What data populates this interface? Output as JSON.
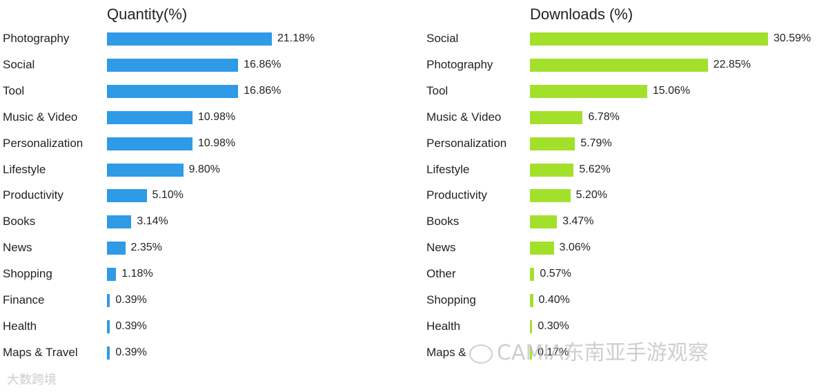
{
  "chart_data": [
    {
      "type": "bar",
      "orientation": "horizontal",
      "title": "Quantity(%)",
      "color": "#2f9ae6",
      "xlim": [
        0,
        30.59
      ],
      "categories": [
        "Photography",
        "Social",
        "Tool",
        "Music & Video",
        "Personalization",
        "Lifestyle",
        "Productivity",
        "Books",
        "News",
        "Shopping",
        "Finance",
        "Health",
        "Maps & Travel"
      ],
      "values": [
        21.18,
        16.86,
        16.86,
        10.98,
        10.98,
        9.8,
        5.1,
        3.14,
        2.35,
        1.18,
        0.39,
        0.39,
        0.39
      ],
      "labels": [
        "21.18%",
        "16.86%",
        "16.86%",
        "10.98%",
        "10.98%",
        "9.80%",
        "5.10%",
        "3.14%",
        "2.35%",
        "1.18%",
        "0.39%",
        "0.39%",
        "0.39%"
      ]
    },
    {
      "type": "bar",
      "orientation": "horizontal",
      "title": "Downloads (%)",
      "color": "#a3e02c",
      "xlim": [
        0,
        30.59
      ],
      "categories": [
        "Social",
        "Photography",
        "Tool",
        "Music & Video",
        "Personalization",
        "Lifestyle",
        "Productivity",
        "Books",
        "News",
        "Other",
        "Shopping",
        "Health",
        "Maps &"
      ],
      "values": [
        30.59,
        22.85,
        15.06,
        6.78,
        5.79,
        5.62,
        5.2,
        3.47,
        3.06,
        0.57,
        0.4,
        0.3,
        0.17
      ],
      "labels": [
        "30.59%",
        "22.85%",
        "15.06%",
        "6.78%",
        "5.79%",
        "5.62%",
        "5.20%",
        "3.47%",
        "3.06%",
        "0.57%",
        "0.40%",
        "0.30%",
        "0.17%"
      ]
    }
  ],
  "watermarks": {
    "right": "CAMIA东南亚手游观察",
    "left": "大数跨境"
  }
}
